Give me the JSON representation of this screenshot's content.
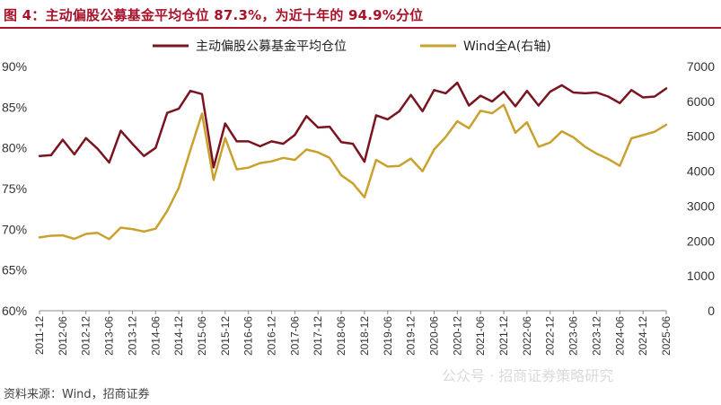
{
  "title": "图 4：主动偏股公募基金平均仓位 87.3%，为近十年的 94.9%分位",
  "source": "资料来源：Wind，招商证券",
  "watermark": "公众号 · 招商证券策略研究",
  "colors": {
    "title": "#a8122a",
    "series_position": "#7a1420",
    "series_index": "#c9a12e"
  },
  "chart_data": {
    "type": "line",
    "x": [
      "2011-12",
      "2012-03",
      "2012-06",
      "2012-09",
      "2012-12",
      "2013-03",
      "2013-06",
      "2013-09",
      "2013-12",
      "2014-03",
      "2014-06",
      "2014-09",
      "2014-12",
      "2015-03",
      "2015-06",
      "2015-09",
      "2015-12",
      "2016-03",
      "2016-06",
      "2016-09",
      "2016-12",
      "2017-03",
      "2017-06",
      "2017-09",
      "2017-12",
      "2018-03",
      "2018-06",
      "2018-09",
      "2018-12",
      "2019-03",
      "2019-06",
      "2019-09",
      "2019-12",
      "2020-03",
      "2020-06",
      "2020-09",
      "2020-12",
      "2021-03",
      "2021-06",
      "2021-09",
      "2021-12",
      "2022-03",
      "2022-06",
      "2022-09",
      "2022-12",
      "2023-03",
      "2023-06",
      "2023-09",
      "2023-12",
      "2024-03",
      "2024-06",
      "2024-09",
      "2024-12",
      "2025-03",
      "2025-06"
    ],
    "x_tick_labels": [
      "2011-12",
      "2012-06",
      "2012-12",
      "2013-06",
      "2013-12",
      "2014-06",
      "2014-12",
      "2015-06",
      "2015-12",
      "2016-06",
      "2016-12",
      "2017-06",
      "2017-12",
      "2018-06",
      "2018-12",
      "2019-06",
      "2019-12",
      "2020-06",
      "2020-12",
      "2021-06",
      "2021-12",
      "2022-06",
      "2022-12",
      "2023-06",
      "2023-12",
      "2024-06",
      "2024-12",
      "2025-06"
    ],
    "series": [
      {
        "name": "主动偏股公募基金平均仓位",
        "axis": "left",
        "values": [
          79.0,
          79.1,
          81.0,
          79.2,
          81.2,
          79.9,
          78.2,
          82.1,
          80.5,
          79.0,
          80.0,
          84.3,
          84.8,
          87.0,
          86.6,
          77.6,
          83.0,
          80.8,
          80.8,
          80.2,
          80.8,
          80.5,
          81.6,
          83.9,
          82.5,
          82.6,
          80.7,
          80.5,
          78.3,
          84.0,
          83.5,
          84.5,
          86.5,
          84.5,
          87.1,
          86.7,
          88.0,
          85.2,
          86.4,
          85.7,
          86.9,
          85.1,
          87.0,
          85.2,
          86.9,
          87.7,
          86.8,
          86.7,
          86.8,
          86.3,
          85.5,
          87.1,
          86.2,
          86.3,
          87.3
        ]
      },
      {
        "name": "Wind全A(右轴)",
        "axis": "right",
        "values": [
          2100,
          2150,
          2160,
          2060,
          2200,
          2230,
          2050,
          2380,
          2340,
          2270,
          2350,
          2860,
          3520,
          4600,
          5650,
          3750,
          4950,
          4050,
          4100,
          4230,
          4280,
          4380,
          4320,
          4620,
          4540,
          4380,
          3880,
          3650,
          3250,
          4320,
          4130,
          4150,
          4360,
          4000,
          4620,
          4980,
          5430,
          5230,
          5730,
          5660,
          5900,
          5100,
          5400,
          4700,
          4820,
          5140,
          4970,
          4700,
          4500,
          4350,
          4150,
          4940,
          5030,
          5130,
          5330
        ]
      }
    ],
    "y_left": {
      "ticks": [
        "60%",
        "65%",
        "70%",
        "75%",
        "80%",
        "85%",
        "90%"
      ],
      "lim": [
        60,
        90
      ]
    },
    "y_right": {
      "ticks": [
        "0",
        "1000",
        "2000",
        "3000",
        "4000",
        "5000",
        "6000",
        "7000"
      ],
      "lim": [
        0,
        7000
      ]
    },
    "legend": {
      "placement": "top-center"
    },
    "grid": false
  }
}
